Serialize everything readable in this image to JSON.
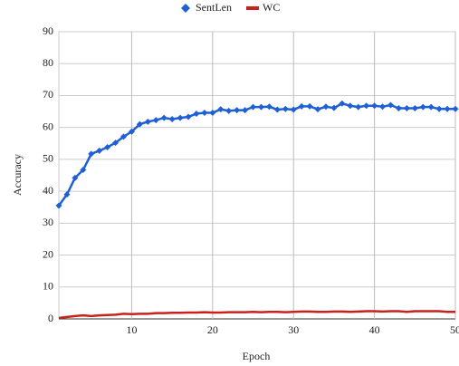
{
  "chart_data": {
    "type": "line",
    "xlabel": "Epoch",
    "ylabel": "Accuracy",
    "x": [
      1,
      2,
      3,
      4,
      5,
      6,
      7,
      8,
      9,
      10,
      11,
      12,
      13,
      14,
      15,
      16,
      17,
      18,
      19,
      20,
      21,
      22,
      23,
      24,
      25,
      26,
      27,
      28,
      29,
      30,
      31,
      32,
      33,
      34,
      35,
      36,
      37,
      38,
      39,
      40,
      41,
      42,
      43,
      44,
      45,
      46,
      47,
      48,
      49,
      50
    ],
    "series": [
      {
        "name": "SentLen",
        "color": "#1f5fd6",
        "marker": "diamond",
        "values": [
          35.5,
          39,
          44.2,
          46.7,
          51.7,
          52.7,
          53.8,
          55.2,
          57.1,
          58.7,
          61,
          61.8,
          62.3,
          63,
          62.6,
          63,
          63.3,
          64.3,
          64.6,
          64.6,
          65.7,
          65.2,
          65.4,
          65.4,
          66.4,
          66.4,
          66.5,
          65.6,
          65.8,
          65.6,
          66.6,
          66.6,
          65.7,
          66.5,
          66.1,
          67.5,
          66.8,
          66.4,
          66.8,
          66.8,
          66.5,
          67,
          66,
          66,
          66,
          66.4,
          66.4,
          65.8,
          65.8,
          65.8
        ]
      },
      {
        "name": "WC",
        "color": "#c9211e",
        "marker": "none",
        "values": [
          0.3,
          0.6,
          0.9,
          1.1,
          0.9,
          1.1,
          1.2,
          1.3,
          1.6,
          1.5,
          1.6,
          1.6,
          1.8,
          1.8,
          1.9,
          1.9,
          2,
          2,
          2.1,
          2,
          2,
          2.1,
          2.1,
          2.1,
          2.2,
          2.1,
          2.2,
          2.2,
          2.1,
          2.2,
          2.3,
          2.3,
          2.2,
          2.2,
          2.3,
          2.3,
          2.2,
          2.3,
          2.4,
          2.4,
          2.3,
          2.4,
          2.4,
          2.2,
          2.4,
          2.4,
          2.4,
          2.4,
          2.2,
          2.2
        ]
      }
    ],
    "xlim": [
      1,
      50
    ],
    "xticks": [
      10,
      20,
      30,
      40,
      50
    ],
    "ylim": [
      0,
      90
    ],
    "yticks": [
      0,
      10,
      20,
      30,
      40,
      50,
      60,
      70,
      80,
      90
    ],
    "grid": true,
    "legend": "top"
  }
}
